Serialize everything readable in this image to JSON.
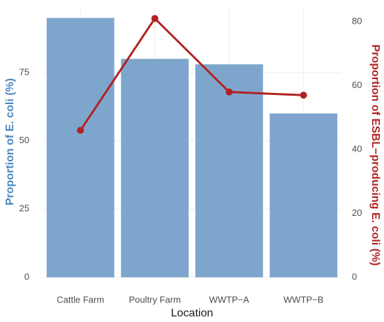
{
  "chart_data": {
    "type": "bar_line",
    "x_label": "Location",
    "y_label": "Proportion of E. coli (%)",
    "y2_label": "Proportion of ESBL−producing E. coli (%)",
    "categories": [
      "Cattle Farm",
      "Poultry Farm",
      "WWTP−A",
      "WWTP−B"
    ],
    "series": [
      {
        "name": "Proportion of E. coli",
        "type": "bar",
        "color": "#7ea6cd",
        "values": [
          95,
          80,
          78,
          60
        ]
      },
      {
        "name": "Proportion of ESBL-producing E. coli",
        "type": "line",
        "axis": "y2",
        "color": "#b22222",
        "values": [
          46,
          81,
          58,
          57
        ]
      }
    ],
    "ylim": [
      0,
      99
    ],
    "yticks": [
      0,
      25,
      50,
      75
    ],
    "y2lim": [
      0,
      84.6
    ],
    "y2ticks": [
      0,
      20,
      40,
      60,
      80
    ],
    "y_label_color": "#4b87c0",
    "y2_label_color": "#b22222",
    "grid": true
  }
}
